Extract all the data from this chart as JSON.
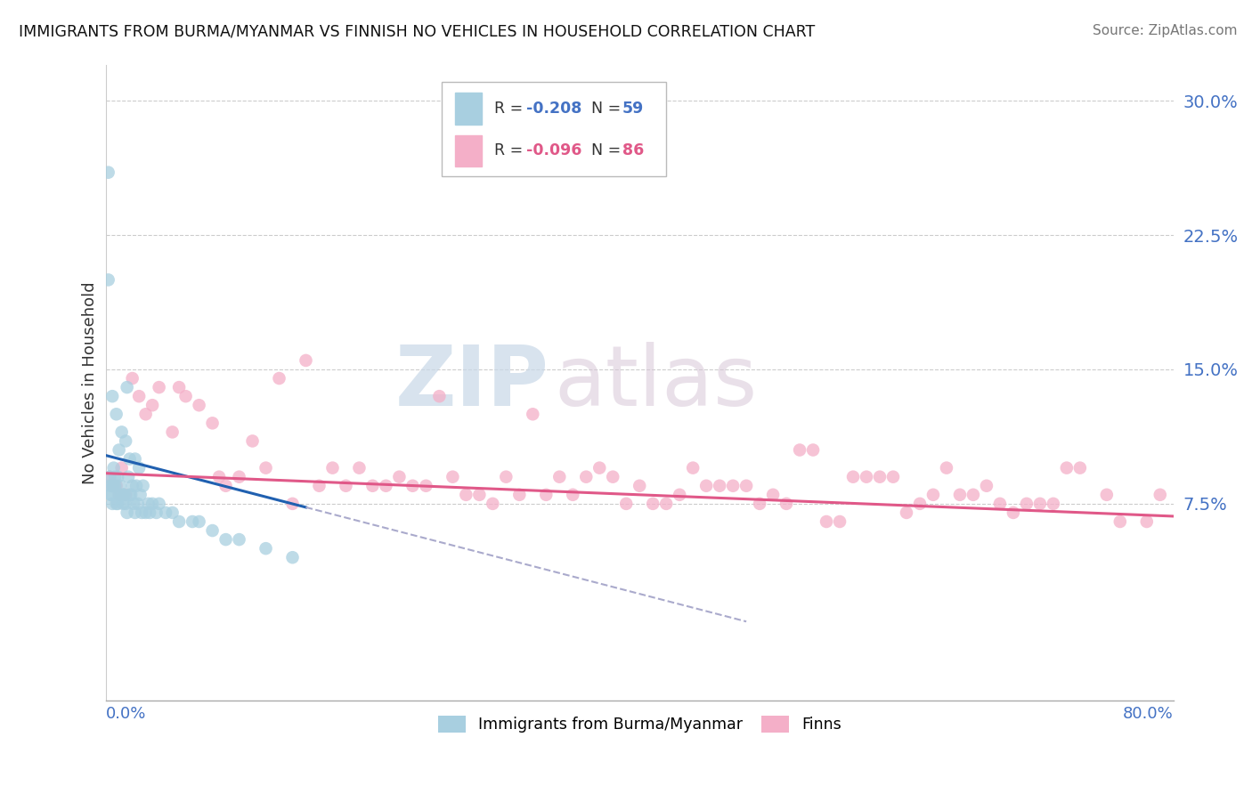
{
  "title": "IMMIGRANTS FROM BURMA/MYANMAR VS FINNISH NO VEHICLES IN HOUSEHOLD CORRELATION CHART",
  "source": "Source: ZipAtlas.com",
  "ylabel_label": "No Vehicles in Household",
  "yticks": [
    0.0,
    7.5,
    15.0,
    22.5,
    30.0
  ],
  "ytick_labels": [
    "",
    "7.5%",
    "15.0%",
    "22.5%",
    "30.0%"
  ],
  "xlim": [
    0.0,
    80.0
  ],
  "ylim": [
    -3.5,
    32.0
  ],
  "legend_blue_r_val": "-0.208",
  "legend_blue_n_val": "59",
  "legend_pink_r_val": "-0.096",
  "legend_pink_n_val": "86",
  "blue_color": "#a8cfe0",
  "pink_color": "#f4afc8",
  "blue_line_color": "#2060b0",
  "pink_line_color": "#e05888",
  "dashed_line_color": "#aaaacc",
  "watermark_zip": "ZIP",
  "watermark_atlas": "atlas",
  "blue_scatter_x": [
    1.0,
    1.5,
    2.2,
    0.5,
    0.8,
    1.2,
    0.3,
    0.6,
    1.8,
    2.5,
    0.4,
    0.7,
    1.1,
    1.6,
    2.0,
    0.9,
    1.3,
    2.8,
    3.2,
    0.2,
    1.9,
    2.3,
    0.5,
    0.8,
    1.4,
    1.7,
    2.6,
    3.5,
    4.0,
    0.3,
    0.6,
    1.0,
    1.5,
    2.1,
    2.7,
    3.8,
    5.0,
    6.5,
    8.0,
    10.0,
    0.4,
    0.7,
    1.2,
    1.8,
    2.4,
    3.0,
    4.5,
    7.0,
    12.0,
    0.5,
    0.9,
    1.3,
    1.6,
    2.2,
    3.3,
    5.5,
    9.0,
    14.0,
    0.2
  ],
  "blue_scatter_y": [
    10.5,
    11.0,
    10.0,
    13.5,
    12.5,
    11.5,
    8.5,
    9.5,
    10.0,
    9.5,
    8.0,
    9.0,
    8.5,
    14.0,
    8.5,
    9.0,
    8.0,
    8.5,
    7.5,
    26.0,
    8.0,
    8.5,
    7.5,
    7.5,
    8.0,
    9.0,
    8.0,
    7.5,
    7.5,
    9.0,
    8.5,
    8.0,
    7.5,
    7.5,
    7.0,
    7.0,
    7.0,
    6.5,
    6.0,
    5.5,
    8.0,
    8.5,
    8.0,
    8.0,
    7.5,
    7.0,
    7.0,
    6.5,
    5.0,
    8.5,
    7.5,
    7.5,
    7.0,
    7.0,
    7.0,
    6.5,
    5.5,
    4.5,
    20.0
  ],
  "pink_scatter_x": [
    0.3,
    0.8,
    1.5,
    2.5,
    4.0,
    6.0,
    8.0,
    10.0,
    13.0,
    16.0,
    19.0,
    22.0,
    25.0,
    28.0,
    31.0,
    34.0,
    37.0,
    40.0,
    43.0,
    46.0,
    49.0,
    52.0,
    55.0,
    58.0,
    61.0,
    64.0,
    67.0,
    70.0,
    73.0,
    76.0,
    79.0,
    0.5,
    1.2,
    2.0,
    3.5,
    5.0,
    7.0,
    9.0,
    12.0,
    15.0,
    18.0,
    21.0,
    24.0,
    27.0,
    30.0,
    33.0,
    36.0,
    39.0,
    42.0,
    45.0,
    48.0,
    51.0,
    54.0,
    57.0,
    60.0,
    63.0,
    66.0,
    69.0,
    72.0,
    75.0,
    78.0,
    1.0,
    3.0,
    5.5,
    8.5,
    11.0,
    14.0,
    17.0,
    20.0,
    23.0,
    26.0,
    29.0,
    32.0,
    35.0,
    38.0,
    41.0,
    44.0,
    47.0,
    50.0,
    53.0,
    56.0,
    59.0,
    62.0,
    65.0,
    68.0,
    71.0
  ],
  "pink_scatter_y": [
    9.0,
    8.5,
    8.0,
    13.5,
    14.0,
    13.5,
    12.0,
    9.0,
    14.5,
    8.5,
    9.5,
    9.0,
    13.5,
    8.0,
    8.0,
    9.0,
    9.5,
    8.5,
    8.0,
    8.5,
    7.5,
    10.5,
    6.5,
    9.0,
    7.5,
    8.0,
    7.5,
    7.5,
    9.5,
    6.5,
    8.0,
    8.5,
    9.5,
    14.5,
    13.0,
    11.5,
    13.0,
    8.5,
    9.5,
    15.5,
    8.5,
    8.5,
    8.5,
    8.0,
    9.0,
    8.0,
    9.0,
    7.5,
    7.5,
    8.5,
    8.5,
    7.5,
    6.5,
    9.0,
    7.0,
    9.5,
    8.5,
    7.5,
    9.5,
    8.0,
    6.5,
    8.0,
    12.5,
    14.0,
    9.0,
    11.0,
    7.5,
    9.5,
    8.5,
    8.5,
    9.0,
    7.5,
    12.5,
    8.0,
    9.0,
    7.5,
    9.5,
    8.5,
    8.0,
    10.5,
    9.0,
    9.0,
    8.0,
    8.0,
    7.0,
    7.5
  ],
  "blue_line_x_start": 0.0,
  "blue_line_x_solid_end": 15.0,
  "blue_line_x_dashed_end": 48.0,
  "blue_line_y_start": 10.2,
  "blue_line_y_solid_end": 7.3,
  "blue_line_y_dashed_end": 1.5,
  "pink_line_x_start": 0.0,
  "pink_line_x_end": 80.0,
  "pink_line_y_start": 9.2,
  "pink_line_y_end": 6.8
}
